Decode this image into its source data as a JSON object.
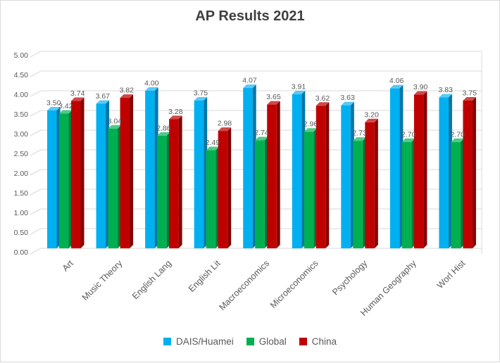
{
  "title": "AP Results 2021",
  "chart_data": {
    "type": "bar",
    "style": "3d-clustered-column",
    "title": "AP Results 2021",
    "xlabel": "",
    "ylabel": "",
    "ylim": [
      0,
      5
    ],
    "y_tick_step": 0.5,
    "y_ticks": [
      "0.00",
      "0.50",
      "1.00",
      "1.50",
      "2.00",
      "2.50",
      "3.00",
      "3.50",
      "4.00",
      "4.50",
      "5.00"
    ],
    "grid": true,
    "legend_position": "bottom",
    "data_labels": true,
    "label_decimals": 2,
    "categories": [
      "Art",
      "Music Theory",
      "English Lang",
      "English Lit",
      "Macroeconomics",
      "Microeconomics",
      "Psychology",
      "Human Geography",
      "Worl Hist"
    ],
    "series": [
      {
        "name": "DAIS/Huamei",
        "color": "#00B0F0",
        "side_color": "#0077A8",
        "top_color": "#5BC9F5",
        "values": [
          3.5,
          3.67,
          4.0,
          3.75,
          4.07,
          3.91,
          3.63,
          4.06,
          3.83
        ]
      },
      {
        "name": "Global",
        "color": "#00B050",
        "side_color": "#007A38",
        "top_color": "#4FC98A",
        "values": [
          3.42,
          3.04,
          2.86,
          2.49,
          2.74,
          2.96,
          2.73,
          2.7,
          2.7
        ]
      },
      {
        "name": "China",
        "color": "#C00000",
        "side_color": "#850000",
        "top_color": "#D04848",
        "values": [
          3.74,
          3.82,
          3.28,
          2.98,
          3.65,
          3.62,
          3.2,
          3.9,
          3.75
        ]
      }
    ]
  },
  "colors": {
    "grid": "#D9D9D9",
    "border": "#D9D9D9",
    "axis_text": "#595959",
    "data_label_text": "#595959",
    "title_text": "#3F3F3F",
    "background": "#FFFFFF"
  }
}
